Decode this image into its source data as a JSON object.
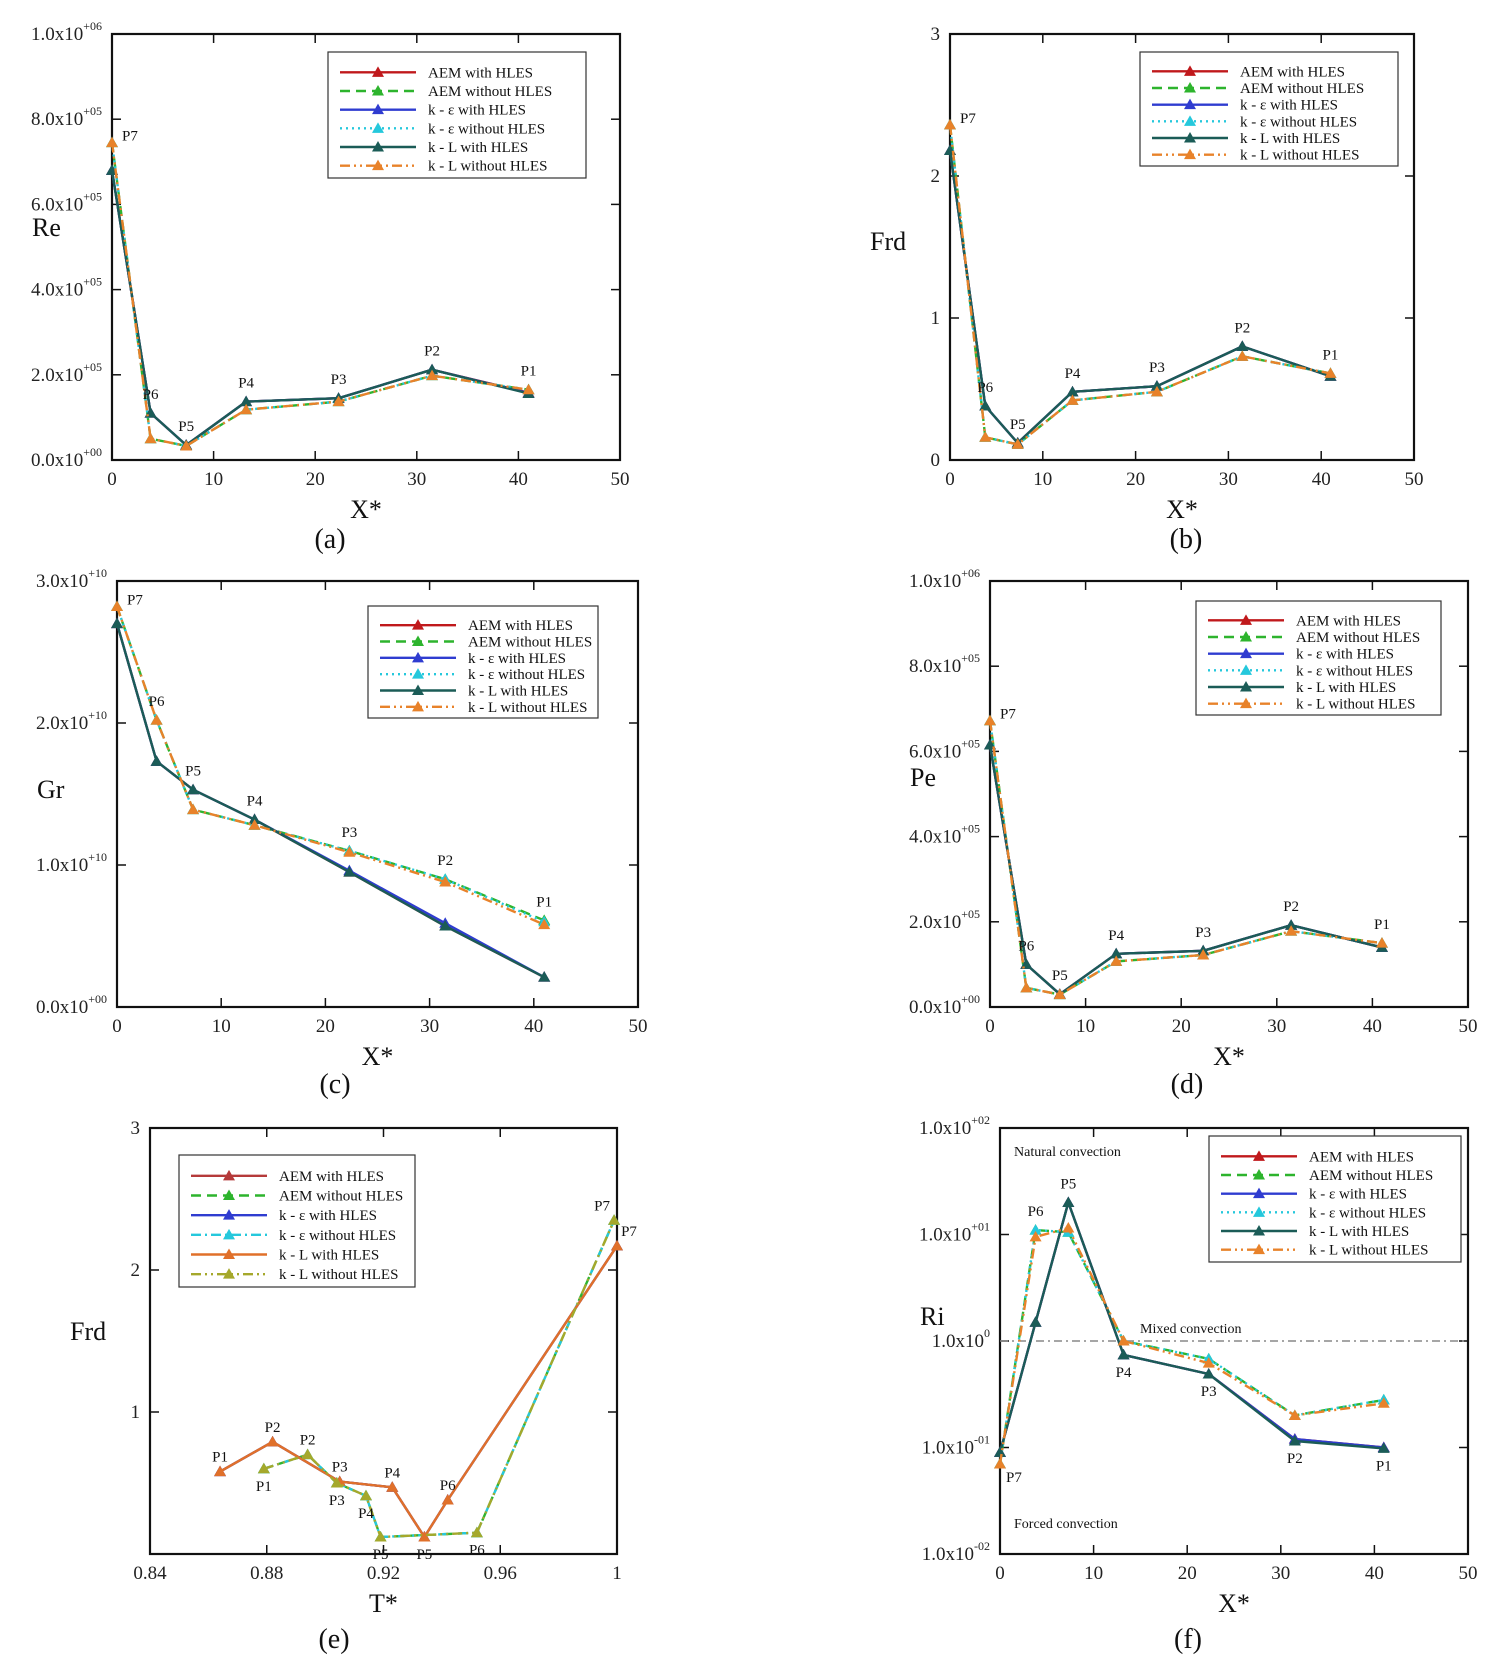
{
  "figure": {
    "captions": [
      "(a)",
      "(b)",
      "(c)",
      "(d)",
      "(e)",
      "(f)"
    ]
  },
  "chart_data": [
    {
      "id": "a",
      "type": "line",
      "caption": "(a)",
      "xlabel": "X*",
      "ylabel": "Re",
      "xlim": [
        0,
        50
      ],
      "ylim": [
        0,
        1000000
      ],
      "yscale": "linear",
      "xticks": [
        0,
        10,
        20,
        30,
        40,
        50
      ],
      "yticks": [
        0,
        200000,
        400000,
        600000,
        800000,
        1000000
      ],
      "ytick_mant": [
        "0.0x10",
        "2.0x10",
        "4.0x10",
        "6.0x10",
        "8.0x10",
        "1.0x10"
      ],
      "ytick_exp": [
        "+00",
        "+05",
        "+05",
        "+05",
        "+05",
        "+06"
      ],
      "legend_position": "top-right",
      "x": [
        0,
        3.8,
        7.3,
        13.2,
        22.3,
        31.5,
        41
      ],
      "point_labels": [
        "P7",
        "P6",
        "P5",
        "P4",
        "P3",
        "P2",
        "P1"
      ],
      "series": [
        {
          "name": "AEM with HLES",
          "color": "#c0191c",
          "dash": "solid",
          "values": [
            680000,
            110000,
            35000,
            137000,
            145000,
            212000,
            158000
          ]
        },
        {
          "name": "AEM without HLES",
          "color": "#2db42d",
          "dash": "dash",
          "values": [
            745000,
            50000,
            33000,
            118000,
            137000,
            198000,
            165000
          ]
        },
        {
          "name": "k - ε with HLES",
          "color": "#2f3cd0",
          "dash": "solid",
          "values": [
            680000,
            110000,
            35000,
            137000,
            145000,
            212000,
            157000
          ]
        },
        {
          "name": "k - ε without HLES",
          "color": "#25c8dc",
          "dash": "dot",
          "values": [
            745000,
            50000,
            33000,
            118000,
            137000,
            198000,
            165000
          ]
        },
        {
          "name": "k - L with HLES",
          "color": "#1b5c57",
          "dash": "solid",
          "values": [
            680000,
            110000,
            35000,
            137000,
            145000,
            212000,
            156000
          ]
        },
        {
          "name": "k - L without HLES",
          "color": "#e8822a",
          "dash": "dashdotdot",
          "values": [
            745000,
            50000,
            33000,
            118000,
            137000,
            198000,
            165000
          ]
        }
      ]
    },
    {
      "id": "b",
      "type": "line",
      "caption": "(b)",
      "xlabel": "X*",
      "ylabel": "Frd",
      "xlim": [
        0,
        50
      ],
      "ylim": [
        0,
        3
      ],
      "yscale": "linear",
      "xticks": [
        0,
        10,
        20,
        30,
        40,
        50
      ],
      "yticks": [
        0,
        1,
        2,
        3
      ],
      "ytick_mant": [
        "0",
        "1",
        "2",
        "3"
      ],
      "ytick_exp": [
        "",
        "",
        "",
        ""
      ],
      "legend_position": "top-right",
      "x": [
        0,
        3.8,
        7.3,
        13.2,
        22.3,
        31.5,
        41
      ],
      "point_labels": [
        "P7",
        "P6",
        "P5",
        "P4",
        "P3",
        "P2",
        "P1"
      ],
      "series": [
        {
          "name": "AEM with HLES",
          "color": "#c0191c",
          "dash": "solid",
          "values": [
            2.18,
            0.38,
            0.12,
            0.48,
            0.52,
            0.8,
            0.59
          ]
        },
        {
          "name": "AEM without HLES",
          "color": "#2db42d",
          "dash": "dash",
          "values": [
            2.36,
            0.16,
            0.11,
            0.42,
            0.48,
            0.73,
            0.61
          ]
        },
        {
          "name": "k - ε with HLES",
          "color": "#2f3cd0",
          "dash": "solid",
          "values": [
            2.18,
            0.38,
            0.12,
            0.48,
            0.52,
            0.8,
            0.59
          ]
        },
        {
          "name": "k - ε without HLES",
          "color": "#25c8dc",
          "dash": "dot",
          "values": [
            2.36,
            0.16,
            0.11,
            0.42,
            0.48,
            0.73,
            0.61
          ]
        },
        {
          "name": "k - L with HLES",
          "color": "#1b5c57",
          "dash": "solid",
          "values": [
            2.18,
            0.38,
            0.12,
            0.48,
            0.52,
            0.8,
            0.59
          ]
        },
        {
          "name": "k - L without HLES",
          "color": "#e8822a",
          "dash": "dashdotdot",
          "values": [
            2.36,
            0.16,
            0.11,
            0.42,
            0.48,
            0.73,
            0.61
          ]
        }
      ]
    },
    {
      "id": "c",
      "type": "line",
      "caption": "(c)",
      "xlabel": "X*",
      "ylabel": "Gr",
      "xlim": [
        0,
        50
      ],
      "ylim": [
        0,
        30000000000
      ],
      "yscale": "linear",
      "xticks": [
        0,
        10,
        20,
        30,
        40,
        50
      ],
      "yticks": [
        0,
        10000000000,
        20000000000,
        30000000000
      ],
      "ytick_mant": [
        "0.0x10",
        "1.0x10",
        "2.0x10",
        "3.0x10"
      ],
      "ytick_exp": [
        "+00",
        "+10",
        "+10",
        "+10"
      ],
      "legend_position": "top-right",
      "x": [
        0,
        3.8,
        7.3,
        13.2,
        22.3,
        31.5,
        41
      ],
      "point_labels": [
        "P7",
        "P6",
        "P5",
        "P4",
        "P3",
        "P2",
        "P1"
      ],
      "series": [
        {
          "name": "AEM with HLES",
          "color": "#c0191c",
          "dash": "solid",
          "values": [
            27000000000,
            17300000000,
            15300000000,
            13200000000,
            9500000000,
            5700000000,
            2100000000
          ]
        },
        {
          "name": "AEM without HLES",
          "color": "#2db42d",
          "dash": "dash",
          "values": [
            28200000000,
            20200000000,
            13900000000,
            12800000000,
            11000000000,
            9000000000,
            6100000000
          ]
        },
        {
          "name": "k - ε with HLES",
          "color": "#2f3cd0",
          "dash": "solid",
          "values": [
            27000000000,
            17300000000,
            15300000000,
            13200000000,
            9600000000,
            5900000000,
            2100000000
          ]
        },
        {
          "name": "k - ε without HLES",
          "color": "#25c8dc",
          "dash": "dot",
          "values": [
            28200000000,
            20200000000,
            13900000000,
            12800000000,
            11000000000,
            9000000000,
            6000000000
          ]
        },
        {
          "name": "k - L with HLES",
          "color": "#1b5c57",
          "dash": "solid",
          "values": [
            27000000000,
            17300000000,
            15300000000,
            13200000000,
            9500000000,
            5700000000,
            2100000000
          ]
        },
        {
          "name": "k - L without HLES",
          "color": "#e8822a",
          "dash": "dashdotdot",
          "values": [
            28200000000,
            20200000000,
            13900000000,
            12800000000,
            10900000000,
            8800000000,
            5800000000
          ]
        }
      ]
    },
    {
      "id": "d",
      "type": "line",
      "caption": "(d)",
      "xlabel": "X*",
      "ylabel": "Pe",
      "xlim": [
        0,
        50
      ],
      "ylim": [
        0,
        1000000
      ],
      "yscale": "linear",
      "xticks": [
        0,
        10,
        20,
        30,
        40,
        50
      ],
      "yticks": [
        0,
        200000,
        400000,
        600000,
        800000,
        1000000
      ],
      "ytick_mant": [
        "0.0x10",
        "2.0x10",
        "4.0x10",
        "6.0x10",
        "8.0x10",
        "1.0x10"
      ],
      "ytick_exp": [
        "+00",
        "+05",
        "+05",
        "+05",
        "+05",
        "+06"
      ],
      "legend_position": "top-right",
      "x": [
        0,
        3.8,
        7.3,
        13.2,
        22.3,
        31.5,
        41
      ],
      "point_labels": [
        "P7",
        "P6",
        "P5",
        "P4",
        "P3",
        "P2",
        "P1"
      ],
      "series": [
        {
          "name": "AEM with HLES",
          "color": "#c0191c",
          "dash": "solid",
          "values": [
            615000,
            100000,
            30000,
            125000,
            132000,
            192000,
            140000
          ]
        },
        {
          "name": "AEM without HLES",
          "color": "#2db42d",
          "dash": "dash",
          "values": [
            672000,
            45000,
            29000,
            107000,
            122000,
            178000,
            150000
          ]
        },
        {
          "name": "k - ε with HLES",
          "color": "#2f3cd0",
          "dash": "solid",
          "values": [
            615000,
            100000,
            30000,
            125000,
            132000,
            192000,
            140000
          ]
        },
        {
          "name": "k - ε without HLES",
          "color": "#25c8dc",
          "dash": "dot",
          "values": [
            672000,
            45000,
            29000,
            107000,
            122000,
            178000,
            150000
          ]
        },
        {
          "name": "k - L with HLES",
          "color": "#1b5c57",
          "dash": "solid",
          "values": [
            615000,
            100000,
            30000,
            125000,
            132000,
            192000,
            140000
          ]
        },
        {
          "name": "k - L without HLES",
          "color": "#e8822a",
          "dash": "dashdotdot",
          "values": [
            672000,
            45000,
            29000,
            107000,
            122000,
            178000,
            150000
          ]
        }
      ]
    },
    {
      "id": "e",
      "type": "line",
      "caption": "(e)",
      "xlabel": "T*",
      "ylabel": "Frd",
      "xlim": [
        0.84,
        1.0
      ],
      "ylim": [
        0,
        3
      ],
      "yscale": "linear",
      "xticks": [
        0.84,
        0.88,
        0.92,
        0.96,
        1
      ],
      "xtick_labels": [
        "0.84",
        "0.88",
        "0.92",
        "0.96",
        "1"
      ],
      "yticks": [
        1,
        2,
        3
      ],
      "ytick_mant": [
        "1",
        "2",
        "3"
      ],
      "ytick_exp": [
        "",
        "",
        ""
      ],
      "legend_position": "top-left",
      "series": [
        {
          "name": "AEM with HLES",
          "color": "#b53a3a",
          "dash": "solid",
          "x": [
            0.864,
            0.882,
            0.905,
            0.923,
            0.934,
            0.942,
            1.0
          ],
          "values": [
            0.58,
            0.79,
            0.51,
            0.47,
            0.12,
            0.38,
            2.17
          ],
          "point_labels": [
            "P1",
            "P2",
            "P3",
            "P4",
            "P5",
            "P6",
            "P7"
          ]
        },
        {
          "name": "AEM without HLES",
          "color": "#2db42d",
          "dash": "dash",
          "x": [
            0.879,
            0.894,
            0.904,
            0.914,
            0.919,
            0.952,
            0.999
          ],
          "values": [
            0.6,
            0.7,
            0.5,
            0.41,
            0.12,
            0.15,
            2.35
          ],
          "point_labels": [
            "P1",
            "P2",
            "P3",
            "P4",
            "P5",
            "P6",
            "P7"
          ]
        },
        {
          "name": "k - ε with HLES",
          "color": "#2f3cd0",
          "dash": "solid",
          "x": [
            0.864,
            0.882,
            0.905,
            0.923,
            0.934,
            0.942,
            1.0
          ],
          "values": [
            0.58,
            0.79,
            0.51,
            0.47,
            0.12,
            0.38,
            2.17
          ]
        },
        {
          "name": "k - ε without HLES",
          "color": "#25c8dc",
          "dash": "dashdot",
          "x": [
            0.879,
            0.894,
            0.904,
            0.914,
            0.919,
            0.952,
            0.999
          ],
          "values": [
            0.6,
            0.7,
            0.5,
            0.41,
            0.12,
            0.15,
            2.35
          ]
        },
        {
          "name": "k - L with HLES",
          "color": "#e0702a",
          "dash": "solid",
          "x": [
            0.864,
            0.882,
            0.905,
            0.923,
            0.934,
            0.942,
            1.0
          ],
          "values": [
            0.58,
            0.79,
            0.51,
            0.47,
            0.12,
            0.38,
            2.17
          ]
        },
        {
          "name": "k - L without HLES",
          "color": "#a5a82b",
          "dash": "dashdotdot",
          "x": [
            0.879,
            0.894,
            0.904,
            0.914,
            0.919,
            0.952,
            0.999
          ],
          "values": [
            0.6,
            0.7,
            0.5,
            0.41,
            0.12,
            0.15,
            2.35
          ]
        }
      ]
    },
    {
      "id": "f",
      "type": "line",
      "caption": "(f)",
      "xlabel": "X*",
      "ylabel": "Ri",
      "xlim": [
        0,
        50
      ],
      "ylim": [
        0.01,
        100
      ],
      "yscale": "log",
      "xticks": [
        0,
        10,
        20,
        30,
        40,
        50
      ],
      "yticks": [
        0.01,
        0.1,
        1,
        10,
        100
      ],
      "ytick_mant": [
        "1.0x10",
        "1.0x10",
        "1.0x10",
        "1.0x10",
        "1.0x10"
      ],
      "ytick_exp": [
        "-02",
        "-01",
        "0",
        "+01",
        "+02"
      ],
      "legend_position": "top-right",
      "reference_line": 1,
      "annotations": [
        "Natural convection",
        "Mixed convection",
        "Forced convection"
      ],
      "x": [
        0,
        3.8,
        7.3,
        13.2,
        22.3,
        31.5,
        41
      ],
      "point_labels": [
        "P7",
        "P6",
        "P5",
        "P4",
        "P3",
        "P2",
        "P1"
      ],
      "series": [
        {
          "name": "AEM with HLES",
          "color": "#c0191c",
          "dash": "solid",
          "values": [
            0.09,
            1.5,
            20,
            0.74,
            0.49,
            0.12,
            0.1
          ]
        },
        {
          "name": "AEM without HLES",
          "color": "#2db42d",
          "dash": "dash",
          "values": [
            0.07,
            11,
            10.5,
            1,
            0.68,
            0.2,
            0.28
          ]
        },
        {
          "name": "k - ε with HLES",
          "color": "#2f3cd0",
          "dash": "solid",
          "values": [
            0.09,
            1.5,
            20,
            0.74,
            0.49,
            0.12,
            0.1
          ]
        },
        {
          "name": "k - ε without HLES",
          "color": "#25c8dc",
          "dash": "dot",
          "values": [
            0.07,
            11,
            10.5,
            1,
            0.68,
            0.2,
            0.28
          ]
        },
        {
          "name": "k - L with HLES",
          "color": "#1b5c57",
          "dash": "solid",
          "values": [
            0.09,
            1.5,
            20,
            0.74,
            0.49,
            0.115,
            0.098
          ]
        },
        {
          "name": "k - L without HLES",
          "color": "#e8822a",
          "dash": "dashdotdot",
          "values": [
            0.07,
            9.5,
            11.5,
            1,
            0.62,
            0.2,
            0.26
          ]
        }
      ]
    }
  ]
}
